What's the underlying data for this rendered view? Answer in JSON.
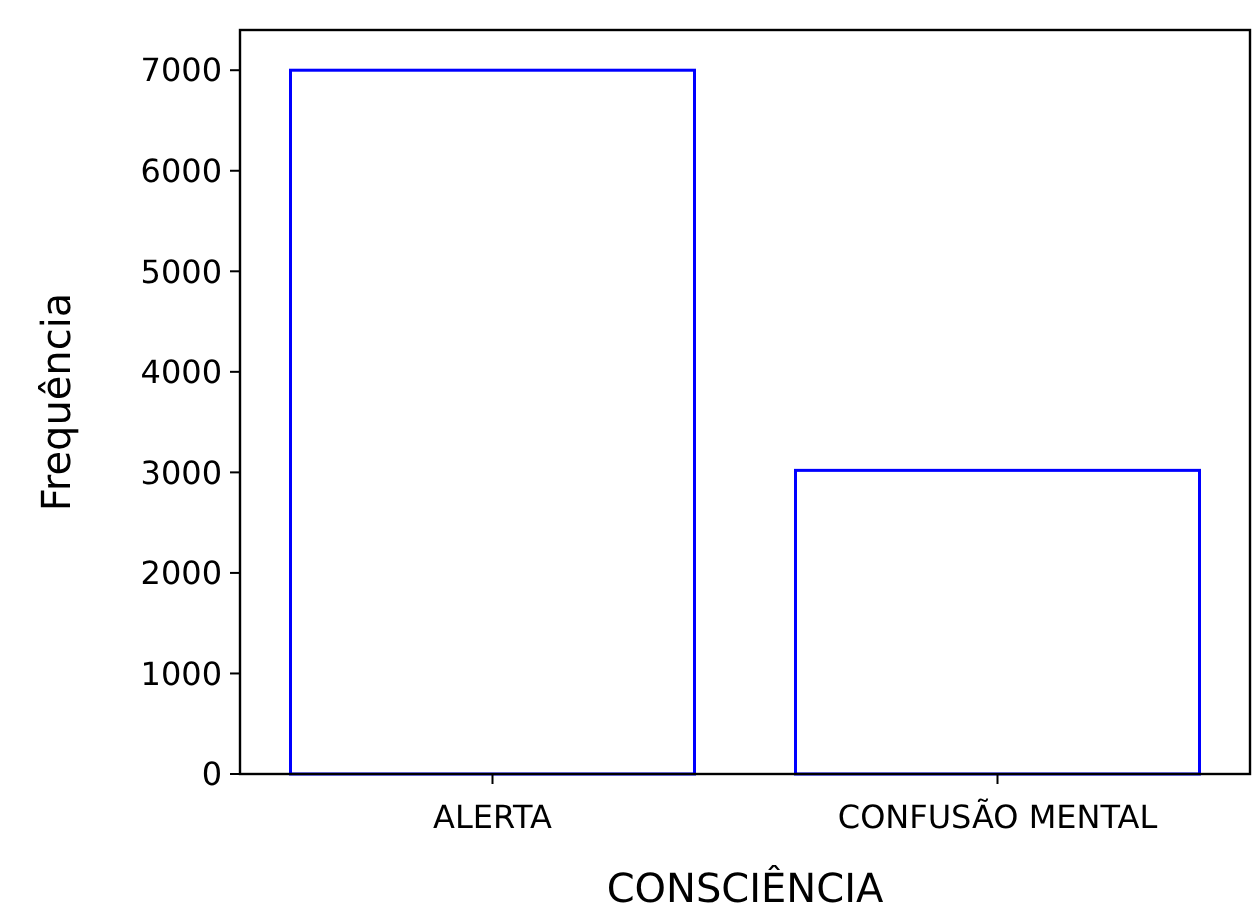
{
  "chart_data": {
    "type": "bar",
    "xlabel": "CONSCIÊNCIA",
    "ylabel": "Frequência",
    "categories": [
      "ALERTA",
      "CONFUSÃO MENTAL"
    ],
    "values": [
      7000,
      3020
    ],
    "color": "#0000ff",
    "ylim": [
      0,
      7400
    ],
    "yticks": [
      0,
      1000,
      2000,
      3000,
      4000,
      5000,
      6000,
      7000
    ],
    "grid": false
  }
}
